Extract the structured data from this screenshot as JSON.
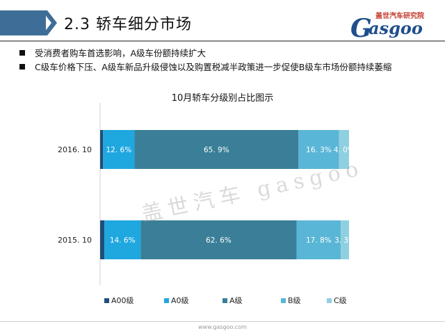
{
  "header": {
    "section_title": "2.3   轿车细分市场",
    "logo_sub": "盖世汽车研究院",
    "logo_main": "asgoo",
    "logo_initial": "G"
  },
  "bullets": [
    "受消费者购车首选影响，A级车份额持续扩大",
    "C级车价格下压、A级车新品升级侵蚀以及购置税减半政策进一步促使B级车市场份额持续萎缩"
  ],
  "watermark": "盖世汽车 gasgoo",
  "footer_url": "www.gasgoo.com",
  "colors": {
    "A00级": "#1F4E79",
    "A0级": "#1FA7E0",
    "A级": "#3A7F97",
    "B级": "#5AB6D6",
    "C级": "#8FD0E0",
    "header_bar": "#3E6E97"
  },
  "chart_data": {
    "type": "bar",
    "orientation": "horizontal",
    "stacked": "percent",
    "title": "10月轿车分级别占比图示",
    "categories": [
      "2016. 10",
      "2015. 10"
    ],
    "series": [
      {
        "name": "A00级",
        "values": [
          1.2,
          1.7
        ],
        "labels": [
          "",
          ""
        ]
      },
      {
        "name": "A0级",
        "values": [
          12.6,
          14.6
        ],
        "labels": [
          "12. 6%",
          "14. 6%"
        ]
      },
      {
        "name": "A级",
        "values": [
          65.9,
          62.6
        ],
        "labels": [
          "65. 9%",
          "62. 6%"
        ]
      },
      {
        "name": "B级",
        "values": [
          16.3,
          17.8
        ],
        "labels": [
          "16. 3%",
          "17. 8%"
        ]
      },
      {
        "name": "C级",
        "values": [
          4.0,
          3.3
        ],
        "labels": [
          "4. 0%",
          "3. 3%"
        ]
      }
    ],
    "xlim": [
      0,
      100
    ],
    "legend": "bottom",
    "grid": false
  }
}
